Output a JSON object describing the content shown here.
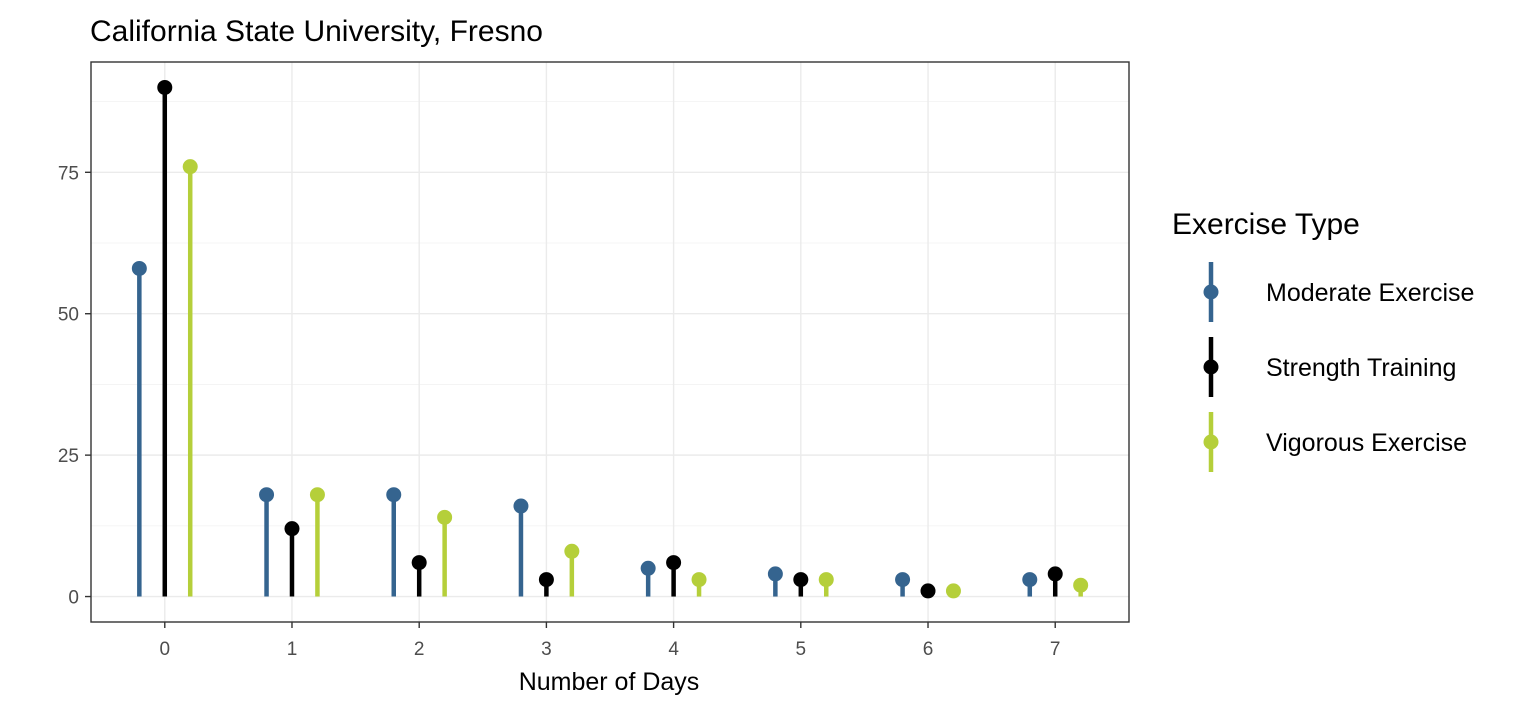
{
  "chart_data": {
    "type": "lollipop",
    "title": "California State University, Fresno",
    "xlabel": "Number of Days",
    "ylabel": "",
    "categories": [
      0,
      1,
      2,
      3,
      4,
      5,
      6,
      7
    ],
    "xlim": [
      -0.58,
      7.58
    ],
    "ylim": [
      -4.5,
      94.5
    ],
    "x_ticks": [
      0,
      1,
      2,
      3,
      4,
      5,
      6,
      7
    ],
    "y_ticks": [
      0,
      25,
      50,
      75
    ],
    "grid": true,
    "dodge_offsets": [
      -0.2,
      0,
      0.2
    ],
    "legend": {
      "title": "Exercise Type",
      "position": "right"
    },
    "series": [
      {
        "name": "Moderate Exercise",
        "color": "#35648f",
        "values": [
          58,
          18,
          18,
          16,
          5,
          4,
          3,
          3
        ]
      },
      {
        "name": "Strength Training",
        "color": "#000000",
        "values": [
          90,
          12,
          6,
          3,
          6,
          3,
          1,
          4
        ]
      },
      {
        "name": "Vigorous Exercise",
        "color": "#b5cf3a",
        "values": [
          76,
          18,
          14,
          8,
          3,
          3,
          1,
          2
        ]
      }
    ]
  }
}
